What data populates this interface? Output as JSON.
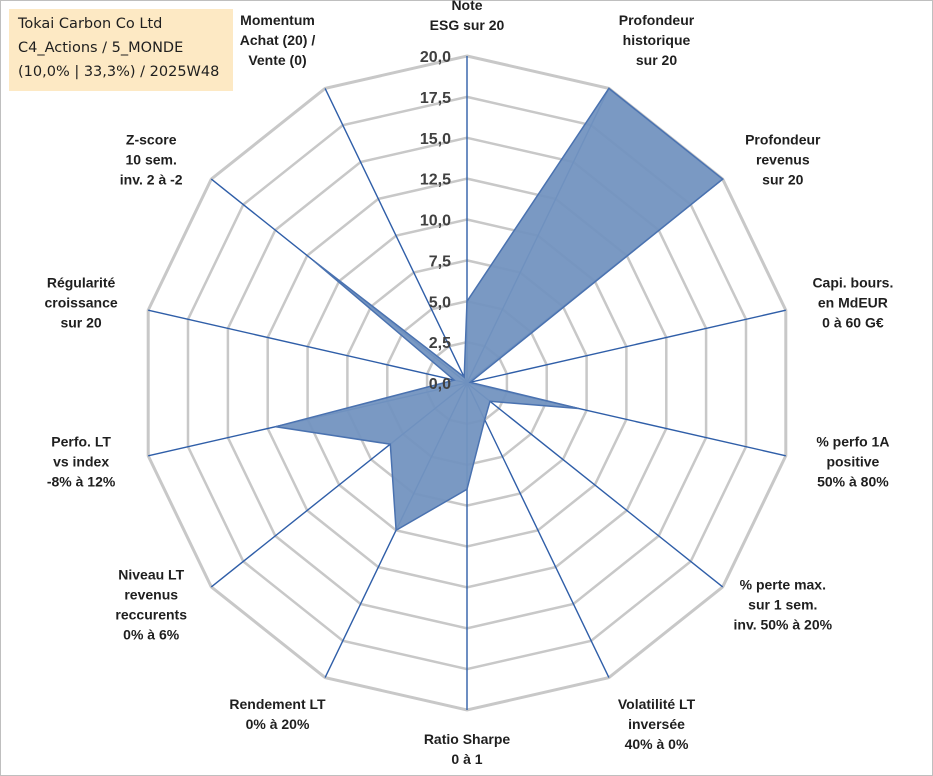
{
  "title_box": {
    "line1": "Tokai Carbon Co Ltd",
    "line2": "C4_Actions / 5_MONDE",
    "line3": "(10,0% | 33,3%) / 2025W48"
  },
  "chart_data": {
    "type": "radar",
    "scale": {
      "min": 0,
      "max": 20,
      "step": 2.5
    },
    "tick_labels": [
      "0,0",
      "2,5",
      "5,0",
      "7,5",
      "10,0",
      "12,5",
      "15,0",
      "17,5",
      "20,0"
    ],
    "axes": [
      {
        "lines": [
          "Note",
          "ESG sur 20"
        ],
        "value": 5.0
      },
      {
        "lines": [
          "Profondeur",
          "historique",
          "sur 20"
        ],
        "value": 20.0
      },
      {
        "lines": [
          "Profondeur",
          "revenus",
          "sur 20"
        ],
        "value": 20.0
      },
      {
        "lines": [
          "Capi. bours.",
          "en MdEUR",
          "0 à 60 G€"
        ],
        "value": 0.2
      },
      {
        "lines": [
          "% perfo 1A",
          "positive",
          "50% à 80%"
        ],
        "value": 7.0
      },
      {
        "lines": [
          "% perte max.",
          "sur 1 sem.",
          "inv. 50% à 20%"
        ],
        "value": 1.8
      },
      {
        "lines": [
          "Volatilité LT",
          "inversée",
          "40% à 0%"
        ],
        "value": 2.5
      },
      {
        "lines": [
          "Ratio Sharpe",
          "0 à 1"
        ],
        "value": 6.5
      },
      {
        "lines": [
          "Rendement LT",
          "0% à 20%"
        ],
        "value": 10.0
      },
      {
        "lines": [
          "Niveau LT",
          "revenus",
          "reccurents",
          "0% à 6%"
        ],
        "value": 6.0
      },
      {
        "lines": [
          "Perfo. LT",
          "vs index",
          "-8% à 12%"
        ],
        "value": 12.0
      },
      {
        "lines": [
          "Régularité",
          "croissance",
          "sur 20"
        ],
        "value": 0.8
      },
      {
        "lines": [
          "Z-score",
          "10 sem.",
          "inv. 2 à -2"
        ],
        "value": 12.0
      },
      {
        "lines": [
          "Momentum",
          "Achat (20) /",
          "Vente (0)"
        ],
        "value": 0.4
      }
    ],
    "colors": {
      "area_fill": "#7394c0",
      "area_stroke": "#4a72b0",
      "spoke": "#2f5ea8",
      "grid": "#c8c8c8"
    }
  }
}
